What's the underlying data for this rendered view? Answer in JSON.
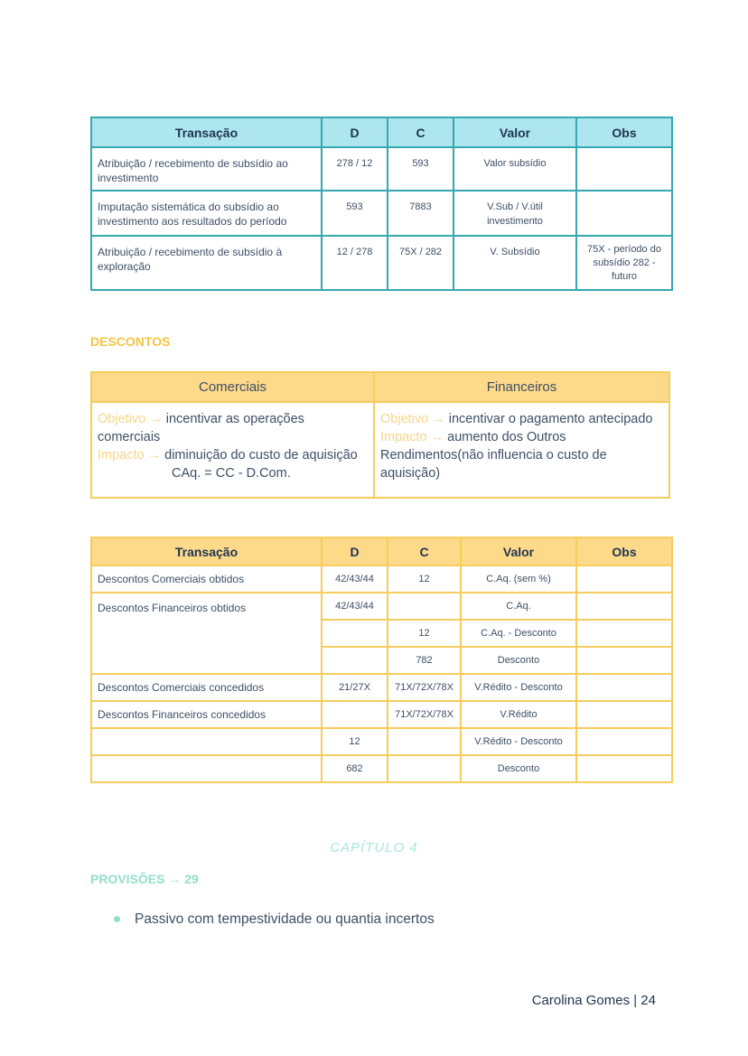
{
  "table1": {
    "headers": [
      "Transação",
      "D",
      "C",
      "Valor",
      "Obs"
    ],
    "rows": [
      [
        "Atribuição / recebimento de subsídio ao investimento",
        "278 / 12",
        "593",
        "Valor subsídio",
        ""
      ],
      [
        "Imputação sistemática do subsídio ao investimento aos resultados do período",
        "593",
        "7883",
        "V.Sub / V.útil investimento",
        ""
      ],
      [
        "Atribuição / recebimento de subsídio à exploração",
        "12 / 278",
        "75X / 282",
        "V. Subsídio",
        "75X -  período do subsídio 282 - futuro"
      ]
    ]
  },
  "descontos": {
    "heading": "DESCONTOS",
    "comerciais": {
      "title": "Comerciais",
      "objetivo_label": "Objetivo →",
      "objetivo": " incentivar as operações comerciais",
      "impacto_label": "Impacto →",
      "impacto": " diminuição do custo de aquisição",
      "formula": "CAq. = CC - D.Com."
    },
    "financeiros": {
      "title": "Financeiros",
      "objetivo_label": "Objetivo →",
      "objetivo": " incentivar o pagamento antecipado",
      "impacto_label": "Impacto →",
      "impacto": " aumento dos Outros Rendimentos(não influencia o custo de aquisição)"
    }
  },
  "table3": {
    "headers": [
      "Transação",
      "D",
      "C",
      "Valor",
      "Obs"
    ],
    "rows": [
      [
        "Descontos Comerciais obtidos",
        "42/43/44",
        "12",
        "C.Aq. (sem %)",
        ""
      ],
      [
        "Descontos Financeiros obtidos",
        "42/43/44",
        "",
        "C.Aq.",
        ""
      ],
      [
        "",
        "",
        "12",
        "C.Aq. - Desconto",
        ""
      ],
      [
        "",
        "",
        "782",
        "Desconto",
        ""
      ],
      [
        "Descontos Comerciais concedidos",
        "21/27X",
        "71X/72X/78X",
        "V.Rédito - Desconto",
        ""
      ],
      [
        "Descontos Financeiros concedidos",
        "",
        "71X/72X/78X",
        "V.Rédito",
        ""
      ],
      [
        "",
        "12",
        "",
        "V.Rédito - Desconto",
        ""
      ],
      [
        "",
        "682",
        "",
        "Desconto",
        ""
      ]
    ]
  },
  "chapter": "CAPÍTULO 4",
  "provisoes": {
    "heading": "PROVISÕES → 29",
    "bullets": [
      "Passivo com tempestividade ou quantia incertos"
    ]
  },
  "footer": "Carolina Gomes | 24",
  "colors": {
    "teal_border": "#35a8b0",
    "teal_fill": "#aee6ef",
    "yellow_border": "#f6cc5a",
    "yellow_fill": "#fdd98a",
    "yellow_heading": "#f5c541",
    "mint_heading": "#92e0c8",
    "text": "#3d4f66"
  }
}
